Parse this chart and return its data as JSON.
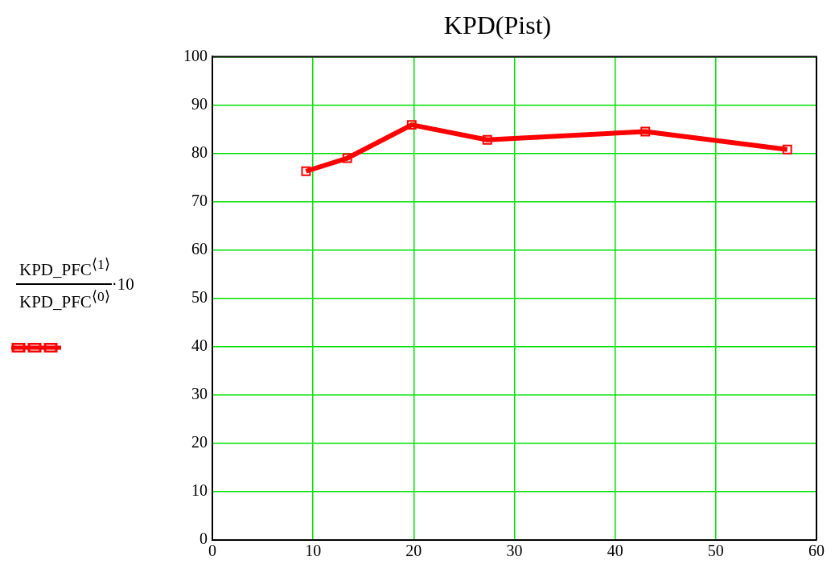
{
  "chart_data": {
    "type": "line",
    "title": "KPD(Pist)",
    "ylabel": "KPD_PFC$^{⟨1⟩}$ KPD_PFC$^{⟨0⟩}$·10",
    "x": [
      9.3,
      13.4,
      19.8,
      27.3,
      43.0,
      57.1
    ],
    "series": [
      {
        "color": "#ff0000",
        "values": [
          76.3,
          79.0,
          85.9,
          82.8,
          84.5,
          80.8
        ]
      }
    ],
    "xlim": [
      0,
      60
    ],
    "xticks": [
      0,
      10,
      20,
      30,
      40,
      50,
      60
    ],
    "ylim": [
      0,
      100
    ],
    "yticks": [
      0,
      10,
      20,
      30,
      40,
      50,
      60,
      70,
      80,
      90,
      100
    ],
    "grid": true,
    "marker": "square",
    "line_style": "solid",
    "legend": false
  }
}
